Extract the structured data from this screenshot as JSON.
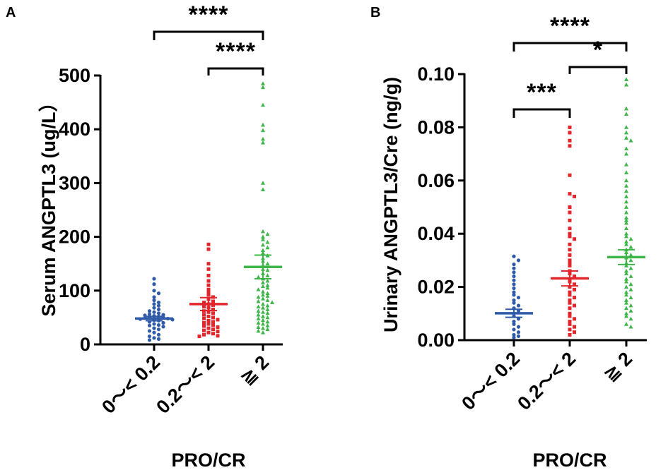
{
  "chart_data": [
    {
      "type": "scatter",
      "panel": "A",
      "title": "",
      "ylabel": "Serum ANGPTL3 (ug/L）",
      "xlabel": "PRO/CR",
      "categories": [
        "0～< 0.2",
        "0.2～< 2",
        "≧ 2"
      ],
      "ylim": [
        0,
        500
      ],
      "yticks": [
        "0",
        "100",
        "200",
        "300",
        "400",
        "500"
      ],
      "series": [
        {
          "name": "0～< 0.2",
          "color": "#2e5aa8",
          "marker": "circle",
          "mean": 48,
          "sem": 4,
          "values": [
            122,
            112,
            100,
            95,
            88,
            82,
            78,
            75,
            72,
            68,
            65,
            62,
            60,
            58,
            56,
            55,
            54,
            53,
            52,
            50,
            50,
            49,
            48,
            47,
            46,
            45,
            44,
            42,
            40,
            38,
            36,
            35,
            33,
            30,
            28,
            25,
            22,
            18,
            15,
            12,
            10,
            8
          ]
        },
        {
          "name": "0.2～< 2",
          "color": "#e3262b",
          "marker": "square",
          "mean": 75,
          "sem": 12,
          "values": [
            186,
            177,
            150,
            140,
            128,
            118,
            110,
            102,
            96,
            92,
            88,
            84,
            80,
            78,
            75,
            73,
            70,
            68,
            65,
            62,
            60,
            58,
            55,
            52,
            50,
            48,
            46,
            44,
            42,
            40,
            38,
            36,
            34,
            32,
            30,
            28,
            26,
            24,
            22,
            20,
            18,
            16,
            15
          ]
        },
        {
          "name": "≧ 2",
          "color": "#3db548",
          "marker": "triangle",
          "mean": 144,
          "sem": 22,
          "values": [
            485,
            478,
            445,
            408,
            398,
            382,
            375,
            300,
            288,
            210,
            205,
            200,
            195,
            190,
            185,
            180,
            175,
            170,
            165,
            160,
            155,
            150,
            147,
            140,
            138,
            132,
            128,
            125,
            122,
            118,
            115,
            110,
            108,
            105,
            102,
            98,
            95,
            92,
            90,
            88,
            85,
            82,
            80,
            78,
            75,
            72,
            70,
            68,
            65,
            62,
            60,
            58,
            55,
            52,
            50,
            48,
            45,
            42,
            40,
            38,
            35,
            32,
            30,
            28,
            25,
            22
          ]
        }
      ],
      "significance": [
        {
          "from": 0,
          "to": 2,
          "label": "****"
        },
        {
          "from": 1,
          "to": 2,
          "label": "****"
        }
      ]
    },
    {
      "type": "scatter",
      "panel": "B",
      "title": "",
      "ylabel": "Urinary ANGPTL3/Cre (ng/g)",
      "xlabel": "PRO/CR",
      "categories": [
        "0～< 0.2",
        "0.2～< 2",
        "≧ 2"
      ],
      "ylim": [
        0,
        0.1
      ],
      "yticks": [
        "0.00",
        "0.02",
        "0.04",
        "0.06",
        "0.08",
        "0.10"
      ],
      "series": [
        {
          "name": "0～< 0.2",
          "color": "#2e5aa8",
          "marker": "circle",
          "mean": 0.0101,
          "sem": 0.0015,
          "values": [
            0.0315,
            0.03,
            0.0285,
            0.027,
            0.0255,
            0.024,
            0.0225,
            0.021,
            0.0195,
            0.018,
            0.017,
            0.016,
            0.015,
            0.014,
            0.013,
            0.012,
            0.011,
            0.01,
            0.009,
            0.008,
            0.007,
            0.006,
            0.005,
            0.004,
            0.003,
            0.002,
            0.0015,
            0.001
          ]
        },
        {
          "name": "0.2～< 2",
          "color": "#e3262b",
          "marker": "square",
          "mean": 0.0232,
          "sem": 0.0028,
          "values": [
            0.08,
            0.078,
            0.075,
            0.073,
            0.062,
            0.055,
            0.054,
            0.05,
            0.048,
            0.045,
            0.042,
            0.04,
            0.039,
            0.038,
            0.036,
            0.034,
            0.032,
            0.03,
            0.029,
            0.028,
            0.026,
            0.025,
            0.024,
            0.023,
            0.022,
            0.021,
            0.02,
            0.019,
            0.018,
            0.017,
            0.016,
            0.015,
            0.014,
            0.013,
            0.012,
            0.01,
            0.009,
            0.008,
            0.007,
            0.006,
            0.005,
            0.004,
            0.003,
            0.002
          ]
        },
        {
          "name": "≧ 2",
          "color": "#3db548",
          "marker": "triangle",
          "mean": 0.0312,
          "sem": 0.0028,
          "values": [
            0.098,
            0.096,
            0.087,
            0.085,
            0.08,
            0.078,
            0.076,
            0.075,
            0.072,
            0.07,
            0.066,
            0.063,
            0.06,
            0.058,
            0.056,
            0.054,
            0.052,
            0.05,
            0.048,
            0.046,
            0.045,
            0.044,
            0.042,
            0.04,
            0.039,
            0.038,
            0.037,
            0.036,
            0.035,
            0.034,
            0.033,
            0.032,
            0.031,
            0.03,
            0.029,
            0.028,
            0.027,
            0.026,
            0.025,
            0.024,
            0.023,
            0.022,
            0.021,
            0.02,
            0.019,
            0.018,
            0.017,
            0.016,
            0.015,
            0.014,
            0.013,
            0.012,
            0.011,
            0.01,
            0.009,
            0.008,
            0.006,
            0.005
          ]
        }
      ],
      "significance": [
        {
          "from": 0,
          "to": 2,
          "label": "****"
        },
        {
          "from": 1,
          "to": 2,
          "label": "*"
        },
        {
          "from": 0,
          "to": 1,
          "label": "***"
        }
      ]
    }
  ]
}
